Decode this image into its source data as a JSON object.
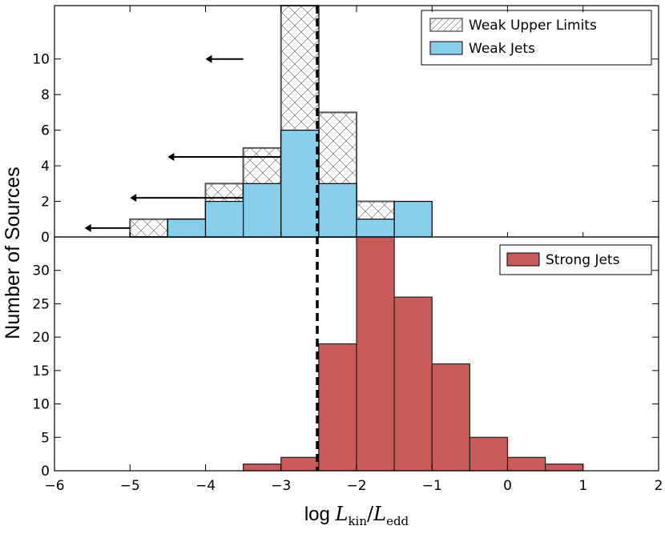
{
  "chart_data": {
    "type": "bar",
    "title": "",
    "xlabel": {
      "prefix": "log ",
      "num": "L",
      "num_sub": "kin",
      "sep": "/",
      "den": "L",
      "den_sub": "edd"
    },
    "ylabel": "Number of Sources",
    "xlim": [
      -6,
      2
    ],
    "xticks": [
      -6,
      -5,
      -4,
      -3,
      -2,
      -1,
      0,
      1,
      2
    ],
    "xtick_labels": [
      "−6",
      "−5",
      "−4",
      "−3",
      "−2",
      "−1",
      "0",
      "1",
      "2"
    ],
    "divider_x": -2.52,
    "top_panel": {
      "ylim": [
        0,
        13
      ],
      "yticks": [
        0,
        2,
        4,
        6,
        8,
        10
      ],
      "ytick_labels": [
        "0",
        "2",
        "4",
        "6",
        "8",
        "10"
      ],
      "bin_width": 0.5,
      "series": [
        {
          "name": "Weak Upper Limits",
          "style": "hatched",
          "bins_left": [
            -5.0,
            -4.5,
            -4.0,
            -3.5,
            -3.0,
            -2.5,
            -2.0
          ],
          "values": [
            1,
            1,
            3,
            5,
            13,
            7,
            2
          ]
        },
        {
          "name": "Weak Jets",
          "color": "#87ceeb",
          "bins_left": [
            -4.5,
            -4.0,
            -3.5,
            -3.0,
            -2.5,
            -2.0,
            -1.5
          ],
          "values": [
            1,
            2,
            3,
            6,
            3,
            1,
            2
          ]
        }
      ],
      "upper_limit_arrows": [
        {
          "x_from": -3.5,
          "x_to": -4.0,
          "y": 10
        },
        {
          "x_from": -3.0,
          "x_to": -4.5,
          "y": 4.5
        },
        {
          "x_from": -3.5,
          "x_to": -5.0,
          "y": 2.2
        },
        {
          "x_from": -5.0,
          "x_to": -5.6,
          "y": 0.5
        }
      ],
      "legend": {
        "position": "top-right",
        "entries": [
          "Weak Upper Limits",
          "Weak Jets"
        ]
      }
    },
    "bottom_panel": {
      "ylim": [
        0,
        35
      ],
      "yticks": [
        0,
        5,
        10,
        15,
        20,
        25,
        30
      ],
      "ytick_labels": [
        "0",
        "5",
        "10",
        "15",
        "20",
        "25",
        "30"
      ],
      "bin_width": 0.5,
      "series": [
        {
          "name": "Strong Jets",
          "color": "#c85a5a",
          "bins_left": [
            -3.5,
            -3.0,
            -2.5,
            -2.0,
            -1.5,
            -1.0,
            -0.5,
            0.0,
            0.5
          ],
          "values": [
            1,
            2,
            19,
            35,
            26,
            16,
            5,
            2,
            1
          ]
        }
      ],
      "legend": {
        "position": "top-right",
        "entries": [
          "Strong Jets"
        ]
      }
    }
  }
}
